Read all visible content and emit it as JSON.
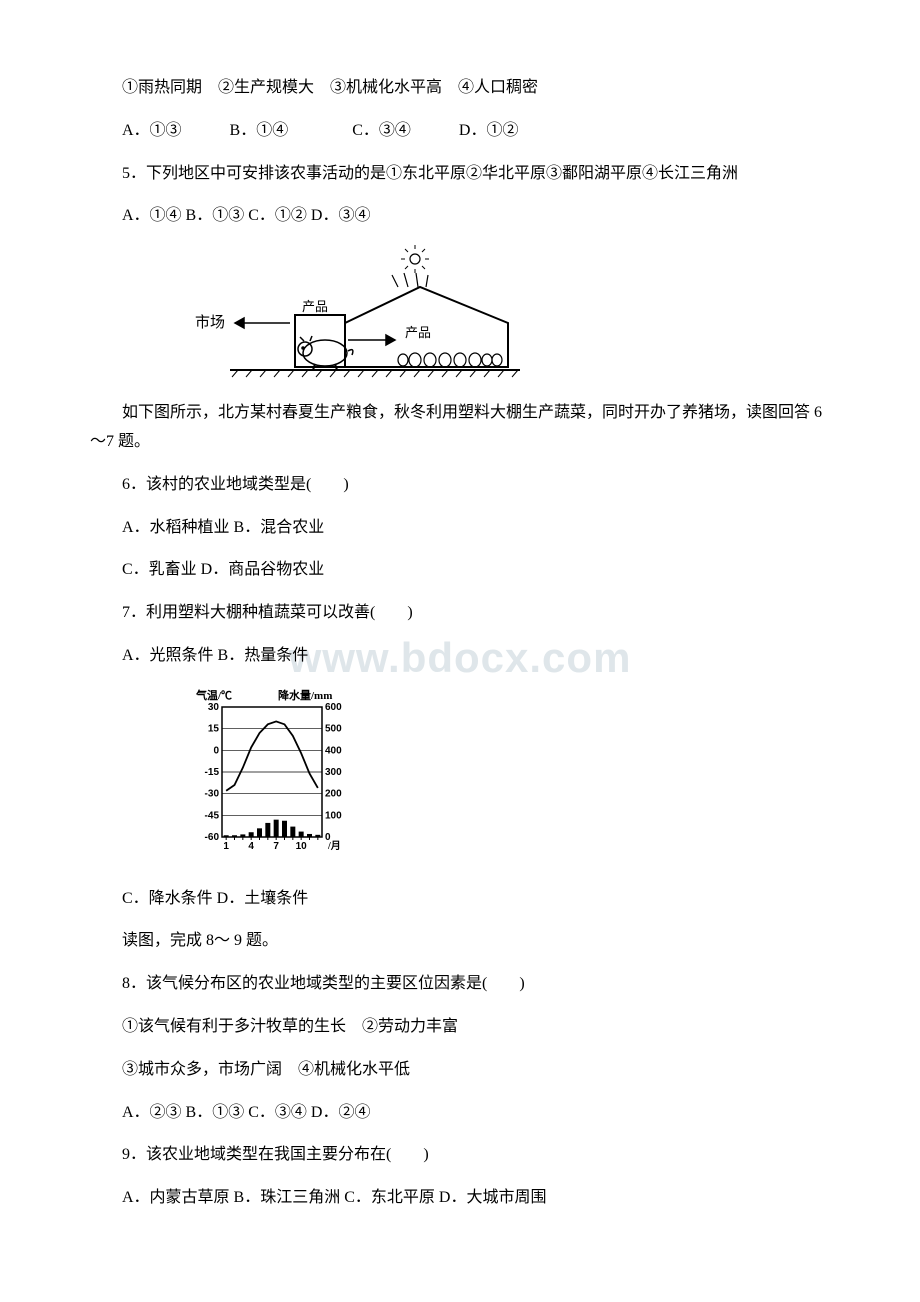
{
  "watermark": "www.bdocx.com",
  "q4": {
    "line1": "①雨热同期　②生产规模大　③机械化水平高　④人口稠密",
    "opts": "A．①③　　　B．①④　　　　C．③④　　　D．①②"
  },
  "q5": {
    "stem": "5．下列地区中可安排该农事活动的是①东北平原②华北平原③鄱阳湖平原④长江三角洲",
    "opts": "A．①④ B．①③ C．①② D．③④"
  },
  "fig1": {
    "market": "市场",
    "product1": "产品",
    "product2": "产品",
    "sun_color": "#000000",
    "line_color": "#000000",
    "bg": "#ffffff"
  },
  "q6intro": "如下图所示，北方某村春夏生产粮食，秋冬利用塑料大棚生产蔬菜，同时开办了养猪场，读图回答 6～7 题。",
  "q6": {
    "stem": "6．该村的农业地域类型是(　　)",
    "optA": "A．水稻种植业 B．混合农业",
    "optC": "C．乳畜业 D．商品谷物农业"
  },
  "q7": {
    "stem": "7．利用塑料大棚种植蔬菜可以改善(　　)",
    "optA": "A．光照条件 B．热量条件",
    "optC": "C．降水条件 D．土壤条件"
  },
  "chart": {
    "temp_label": "气温/℃",
    "precip_label": "降水量/mm",
    "x_label": "/月",
    "y_left_ticks": [
      "30",
      "15",
      "0",
      "-15",
      "-30",
      "-45",
      "-60"
    ],
    "y_right_ticks": [
      "600",
      "500",
      "400",
      "300",
      "200",
      "100",
      "0"
    ],
    "x_ticks": [
      "1",
      "4",
      "7",
      "10"
    ],
    "temp_curve": [
      {
        "x": 1,
        "y": -28
      },
      {
        "x": 2,
        "y": -24
      },
      {
        "x": 3,
        "y": -12
      },
      {
        "x": 4,
        "y": 2
      },
      {
        "x": 5,
        "y": 12
      },
      {
        "x": 6,
        "y": 18
      },
      {
        "x": 7,
        "y": 20
      },
      {
        "x": 8,
        "y": 18
      },
      {
        "x": 9,
        "y": 10
      },
      {
        "x": 10,
        "y": -2
      },
      {
        "x": 11,
        "y": -16
      },
      {
        "x": 12,
        "y": -26
      }
    ],
    "precip_bars": [
      8,
      8,
      12,
      22,
      40,
      65,
      80,
      75,
      48,
      25,
      14,
      10
    ],
    "axis_color": "#000000",
    "bg": "#ffffff",
    "font_size": 10
  },
  "q8intro": "读图，完成 8～ 9 题。",
  "q8": {
    "stem": "8．该气候分布区的农业地域类型的主要区位因素是(　　)",
    "line1": "①该气候有利于多汁牧草的生长　②劳动力丰富",
    "line2": "③城市众多，市场广阔　④机械化水平低",
    "opts": "A．②③ B．①③ C．③④ D．②④"
  },
  "q9": {
    "stem": "9．该农业地域类型在我国主要分布在(　　)",
    "opts": "A．内蒙古草原 B．珠江三角洲 C．东北平原 D．大城市周围"
  }
}
